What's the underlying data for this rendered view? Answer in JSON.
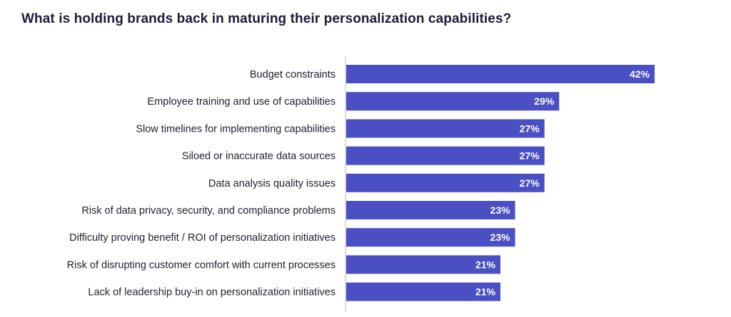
{
  "title": "What is holding brands back in maturing their personalization capabilities?",
  "chart_data": {
    "type": "bar",
    "orientation": "horizontal",
    "categories": [
      "Budget constraints",
      "Employee training and use of capabilities",
      "Slow timelines for implementing capabilities",
      "Siloed or inaccurate data sources",
      "Data analysis quality issues",
      "Risk of data privacy, security, and compliance problems",
      "Difficulty proving benefit / ROI of personalization initiatives",
      "Risk of disrupting customer comfort with current processes",
      "Lack of leadership buy-in on personalization initiatives"
    ],
    "values": [
      42,
      29,
      27,
      27,
      27,
      23,
      23,
      21,
      21
    ],
    "value_labels": [
      "42%",
      "29%",
      "27%",
      "27%",
      "27%",
      "23%",
      "23%",
      "21%",
      "21%"
    ],
    "unit": "%",
    "xlim": [
      0,
      42
    ],
    "bar_color": "#4a4fc4",
    "axis_color": "#b8b8b8",
    "grid": false,
    "legend": false
  }
}
